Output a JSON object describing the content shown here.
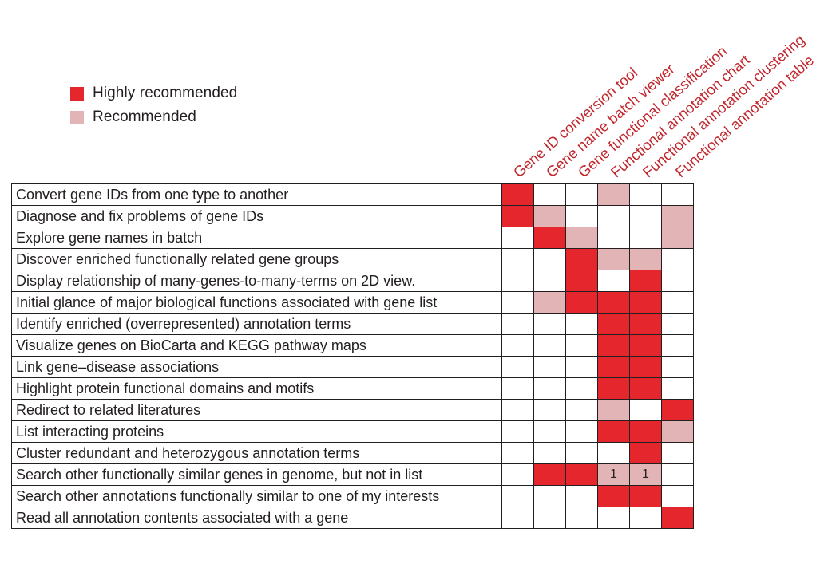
{
  "colors": {
    "highly": "#e5262c",
    "recommended": "#e3b4b6",
    "none": "#ffffff",
    "header_text": "#c1272d"
  },
  "legend": [
    {
      "label": "Highly recommended",
      "level": "highly"
    },
    {
      "label": "Recommended",
      "level": "recommended"
    }
  ],
  "tools": [
    "Gene ID conversion tool",
    "Gene name batch viewer",
    "Gene functional classification",
    "Functional annotation chart",
    "Functional annotation clustering",
    "Functional annotation table"
  ],
  "rows": [
    {
      "task": "Convert gene IDs from one type to another",
      "cells": [
        "H",
        "",
        "",
        "R",
        "",
        ""
      ],
      "notes": [
        "",
        "",
        "",
        "",
        "",
        ""
      ]
    },
    {
      "task": "Diagnose and fix problems of gene IDs",
      "cells": [
        "H",
        "R",
        "",
        "",
        "",
        "R"
      ],
      "notes": [
        "",
        "",
        "",
        "",
        "",
        ""
      ]
    },
    {
      "task": "Explore gene names in batch",
      "cells": [
        "",
        "H",
        "R",
        "",
        "",
        "R"
      ],
      "notes": [
        "",
        "",
        "",
        "",
        "",
        ""
      ]
    },
    {
      "task": "Discover enriched functionally related gene groups",
      "cells": [
        "",
        "",
        "H",
        "R",
        "R",
        ""
      ],
      "notes": [
        "",
        "",
        "",
        "",
        "",
        ""
      ]
    },
    {
      "task": "Display relationship of many-genes-to-many-terms on 2D view.",
      "cells": [
        "",
        "",
        "H",
        "",
        "H",
        ""
      ],
      "notes": [
        "",
        "",
        "",
        "",
        "",
        ""
      ]
    },
    {
      "task": "Initial glance of major biological functions associated with gene list",
      "cells": [
        "",
        "R",
        "H",
        "H",
        "H",
        ""
      ],
      "notes": [
        "",
        "",
        "",
        "",
        "",
        ""
      ]
    },
    {
      "task": "Identify enriched (overrepresented) annotation terms",
      "cells": [
        "",
        "",
        "",
        "H",
        "H",
        ""
      ],
      "notes": [
        "",
        "",
        "",
        "",
        "",
        ""
      ]
    },
    {
      "task": "Visualize genes on BioCarta and KEGG pathway maps",
      "cells": [
        "",
        "",
        "",
        "H",
        "H",
        ""
      ],
      "notes": [
        "",
        "",
        "",
        "",
        "",
        ""
      ]
    },
    {
      "task": "Link gene–disease associations",
      "cells": [
        "",
        "",
        "",
        "H",
        "H",
        ""
      ],
      "notes": [
        "",
        "",
        "",
        "",
        "",
        ""
      ]
    },
    {
      "task": "Highlight protein functional domains and motifs",
      "cells": [
        "",
        "",
        "",
        "H",
        "H",
        ""
      ],
      "notes": [
        "",
        "",
        "",
        "",
        "",
        ""
      ]
    },
    {
      "task": "Redirect to related literatures",
      "cells": [
        "",
        "",
        "",
        "R",
        "",
        "H"
      ],
      "notes": [
        "",
        "",
        "",
        "",
        "",
        ""
      ]
    },
    {
      "task": "List interacting proteins",
      "cells": [
        "",
        "",
        "",
        "H",
        "H",
        "R"
      ],
      "notes": [
        "",
        "",
        "",
        "",
        "",
        ""
      ]
    },
    {
      "task": "Cluster redundant and heterozygous annotation terms",
      "cells": [
        "",
        "",
        "",
        "",
        "H",
        ""
      ],
      "notes": [
        "",
        "",
        "",
        "",
        "",
        ""
      ]
    },
    {
      "task": "Search other functionally similar genes in genome, but not in list",
      "cells": [
        "",
        "H",
        "H",
        "R",
        "R",
        ""
      ],
      "notes": [
        "",
        "",
        "",
        "1",
        "1",
        ""
      ]
    },
    {
      "task": "Search other annotations functionally similar to one of my interests",
      "cells": [
        "",
        "",
        "",
        "H",
        "H",
        ""
      ],
      "notes": [
        "",
        "",
        "",
        "",
        "",
        ""
      ]
    },
    {
      "task": "Read all annotation contents associated with a gene",
      "cells": [
        "",
        "",
        "",
        "",
        "",
        "H"
      ],
      "notes": [
        "",
        "",
        "",
        "",
        "",
        ""
      ]
    }
  ]
}
